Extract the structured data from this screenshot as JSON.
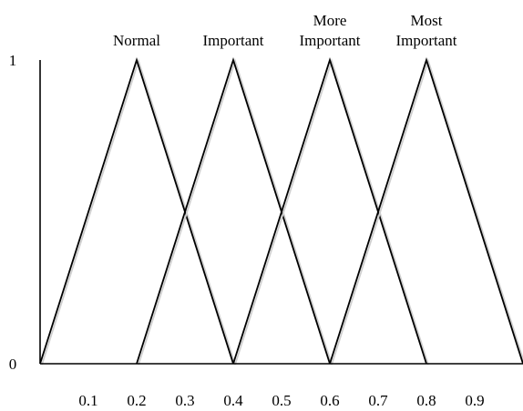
{
  "chart_data": {
    "type": "line",
    "title": "",
    "xlabel": "",
    "ylabel": "",
    "xlim": [
      0,
      1
    ],
    "ylim": [
      0,
      1
    ],
    "grid": false,
    "legend": "none",
    "x_ticks": [
      "0.1",
      "0.2",
      "0.3",
      "0.4",
      "0.5",
      "0.6",
      "0.7",
      "0.8",
      "0.9"
    ],
    "x_tick_values": [
      0.1,
      0.2,
      0.3,
      0.4,
      0.5,
      0.6,
      0.7,
      0.8,
      0.9
    ],
    "y_ticks": [
      "0",
      "1"
    ],
    "y_tick_values": [
      0,
      1
    ],
    "series": [
      {
        "name": "Normal",
        "label_lines": [
          "Normal"
        ],
        "x": [
          0.0,
          0.2,
          0.4
        ],
        "y": [
          0,
          1,
          0
        ]
      },
      {
        "name": "Important",
        "label_lines": [
          "Important"
        ],
        "x": [
          0.2,
          0.4,
          0.6
        ],
        "y": [
          0,
          1,
          0
        ]
      },
      {
        "name": "More Important",
        "label_lines": [
          "More",
          "Important"
        ],
        "x": [
          0.4,
          0.6,
          0.8
        ],
        "y": [
          0,
          1,
          0
        ]
      },
      {
        "name": "Most Important",
        "label_lines": [
          "Most",
          "Important"
        ],
        "x": [
          0.6,
          0.8,
          1.0
        ],
        "y": [
          0,
          1,
          0
        ]
      }
    ],
    "line_color": "#000000"
  }
}
